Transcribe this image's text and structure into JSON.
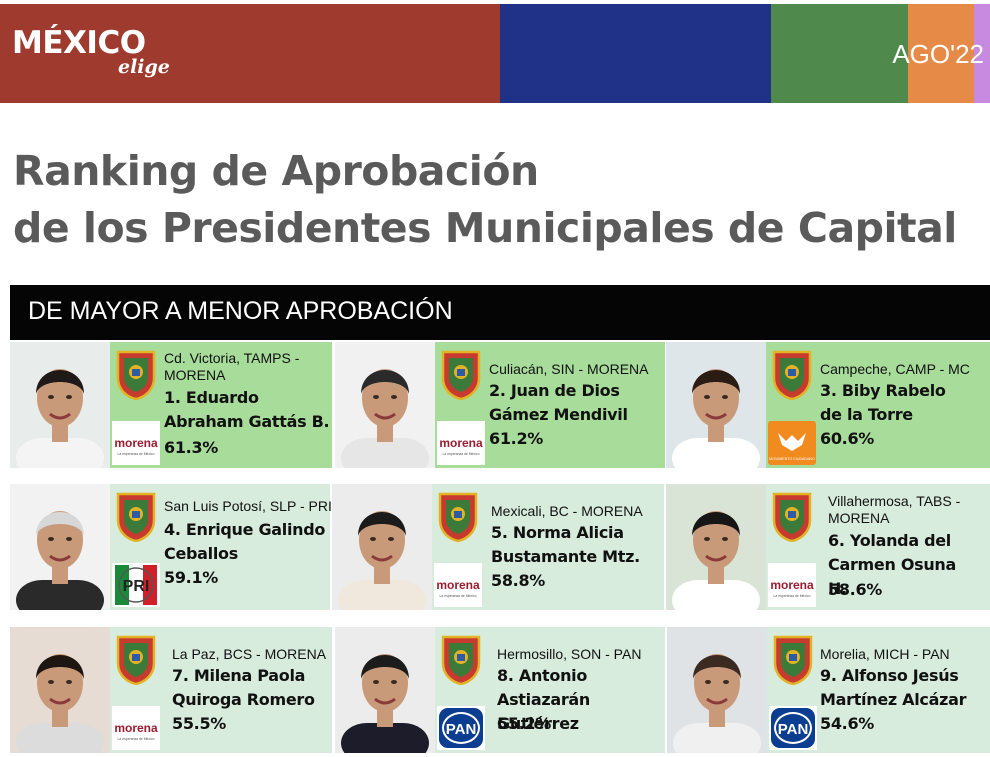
{
  "header": {
    "logo_main": "MÉXICO",
    "logo_sub": "elige",
    "date": "AGO'22",
    "colors": [
      "#9e3a2e",
      "#1f3287",
      "#4f8a4c",
      "#e58b47",
      "#c88ae0"
    ]
  },
  "title": {
    "line1": "Ranking de Aprobación",
    "line2": "de los Presidentes Municipales de Capital"
  },
  "band": {
    "label": "DE MAYOR A MENOR APROBACIÓN"
  },
  "colors": {
    "row1_bg": "#a8dc9a",
    "row_bg": "#d8ecdd"
  },
  "party_logos": {
    "morena": {
      "label": "morena",
      "tagline": "La esperanza de México"
    },
    "mc": {
      "label": "MOVIMIENTO CIUDADANO"
    },
    "pri": {
      "label": "PRI"
    },
    "pan": {
      "label": "PAN"
    }
  },
  "officials": [
    {
      "place": "Cd. Victoria, TAMPS - MORENA",
      "name": "1. Eduardo Abraham Gattás B.",
      "pct": "61.3%",
      "party": "morena",
      "seal": "tamaulipas-seal-icon"
    },
    {
      "place": "Culiacán, SIN - MORENA",
      "name": "2. Juan de Dios Gámez Mendivil",
      "pct": "61.2%",
      "party": "morena",
      "seal": "sinaloa-seal-icon"
    },
    {
      "place": "Campeche, CAMP - MC",
      "name": "3. Biby Rabelo de la Torre",
      "pct": "60.6%",
      "party": "mc",
      "seal": "campeche-seal-icon"
    },
    {
      "place": "San Luis Potosí, SLP - PRI",
      "name": "4. Enrique Galindo Ceballos",
      "pct": "59.1%",
      "party": "pri",
      "seal": "san-luis-potosi-seal-icon"
    },
    {
      "place": "Mexicali, BC - MORENA",
      "name": "5. Norma Alicia Bustamante Mtz.",
      "pct": "58.8%",
      "party": "morena",
      "seal": "baja-california-seal-icon"
    },
    {
      "place": "Villahermosa, TABS - MORENA",
      "name": "6. Yolanda del Carmen Osuna H.",
      "pct": "58.6%",
      "party": "morena",
      "seal": "tabasco-seal-icon"
    },
    {
      "place": "La Paz, BCS - MORENA",
      "name": "7. Milena Paola Quiroga Romero",
      "pct": "55.5%",
      "party": "morena",
      "seal": "baja-california-sur-seal-icon"
    },
    {
      "place": "Hermosillo, SON - PAN",
      "name": "8. Antonio Astiazarán Gutiérrez",
      "pct": "55.2%",
      "party": "pan",
      "seal": "sonora-seal-icon"
    },
    {
      "place": "Morelia, MICH - PAN",
      "name": "9. Alfonso Jesús Martínez Alcázar",
      "pct": "54.6%",
      "party": "pan",
      "seal": "michoacan-seal-icon"
    }
  ]
}
